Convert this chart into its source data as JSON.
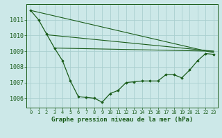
{
  "title": "Graphe pression niveau de la mer (hPa)",
  "background_color": "#cce8e8",
  "grid_color": "#aacfcf",
  "line_color": "#1a5c1a",
  "marker_color": "#1a5c1a",
  "xlim": [
    -0.5,
    23.5
  ],
  "ylim": [
    1005.4,
    1012.0
  ],
  "yticks": [
    1006,
    1007,
    1008,
    1009,
    1010,
    1011
  ],
  "xticks": [
    0,
    1,
    2,
    3,
    4,
    5,
    6,
    7,
    8,
    9,
    10,
    11,
    12,
    13,
    14,
    15,
    16,
    17,
    18,
    19,
    20,
    21,
    22,
    23
  ],
  "series_main": {
    "x": [
      0,
      1,
      2,
      3,
      4,
      5,
      6,
      7,
      8,
      9,
      10,
      11,
      12,
      13,
      14,
      15,
      16,
      17,
      18,
      19,
      20,
      21,
      22,
      23
    ],
    "y": [
      1011.6,
      1011.0,
      1010.1,
      1009.2,
      1008.4,
      1007.1,
      1006.1,
      1006.05,
      1006.0,
      1005.75,
      1006.3,
      1006.5,
      1007.0,
      1007.05,
      1007.1,
      1007.1,
      1007.1,
      1007.5,
      1007.5,
      1007.3,
      1007.8,
      1008.4,
      1008.85,
      1008.8
    ]
  },
  "series_line1": {
    "x": [
      0,
      23
    ],
    "y": [
      1011.6,
      1008.9
    ]
  },
  "series_line2": {
    "x": [
      2,
      23
    ],
    "y": [
      1010.05,
      1009.0
    ]
  },
  "series_line3": {
    "x": [
      3,
      23
    ],
    "y": [
      1009.2,
      1009.0
    ]
  }
}
